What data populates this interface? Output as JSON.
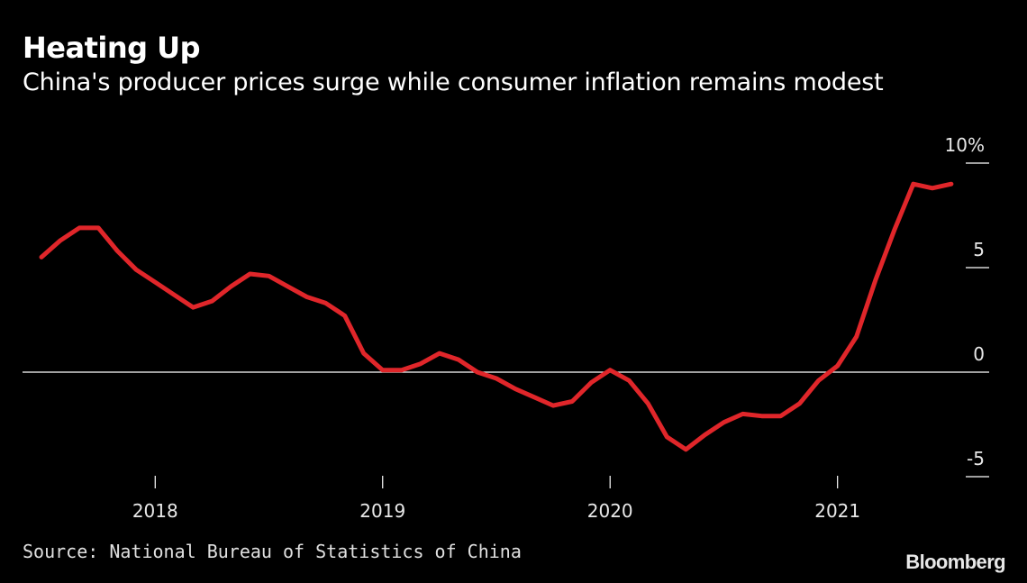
{
  "header": {
    "title": "Heating Up",
    "subtitle": "China's producer prices surge while consumer inflation remains modest"
  },
  "footer": {
    "source": "Source: National Bureau of Statistics of China",
    "brand": "Bloomberg"
  },
  "colors": {
    "background": "#000000",
    "series": "#e0262a",
    "axis": "#ffffff",
    "text": "#e8e8e8"
  },
  "chart_data": {
    "type": "line",
    "title": "Heating Up",
    "subtitle": "China's producer prices surge while consumer inflation remains modest",
    "xlabel": "",
    "ylabel": "",
    "ylim": [
      -5.5,
      10
    ],
    "grid": false,
    "legend": "none",
    "y_ticks": [
      {
        "value": 10,
        "label": "10%"
      },
      {
        "value": 5,
        "label": "5"
      },
      {
        "value": 0,
        "label": "0"
      },
      {
        "value": -5,
        "label": "-5"
      }
    ],
    "x_ticks": [
      {
        "value": "2018-01",
        "label": "2018"
      },
      {
        "value": "2019-01",
        "label": "2019"
      },
      {
        "value": "2020-01",
        "label": "2020"
      },
      {
        "value": "2021-01",
        "label": "2021"
      }
    ],
    "x_range": [
      "2017-06",
      "2021-09"
    ],
    "x": [
      "2017-07",
      "2017-08",
      "2017-09",
      "2017-10",
      "2017-11",
      "2017-12",
      "2018-01",
      "2018-02",
      "2018-03",
      "2018-04",
      "2018-05",
      "2018-06",
      "2018-07",
      "2018-08",
      "2018-09",
      "2018-10",
      "2018-11",
      "2018-12",
      "2019-01",
      "2019-02",
      "2019-03",
      "2019-04",
      "2019-05",
      "2019-06",
      "2019-07",
      "2019-08",
      "2019-09",
      "2019-10",
      "2019-11",
      "2019-12",
      "2020-01",
      "2020-02",
      "2020-03",
      "2020-04",
      "2020-05",
      "2020-06",
      "2020-07",
      "2020-08",
      "2020-09",
      "2020-10",
      "2020-11",
      "2020-12",
      "2021-01",
      "2021-02",
      "2021-03",
      "2021-04",
      "2021-05",
      "2021-06",
      "2021-07"
    ],
    "series": [
      {
        "values": [
          5.5,
          6.3,
          6.9,
          6.9,
          5.8,
          4.9,
          4.3,
          3.7,
          3.1,
          3.4,
          4.1,
          4.7,
          4.6,
          4.1,
          3.6,
          3.3,
          2.7,
          0.9,
          0.1,
          0.1,
          0.4,
          0.9,
          0.6,
          0.0,
          -0.3,
          -0.8,
          -1.2,
          -1.6,
          -1.4,
          -0.5,
          0.1,
          -0.4,
          -1.5,
          -3.1,
          -3.7,
          -3.0,
          -2.4,
          -2.0,
          -2.1,
          -2.1,
          -1.5,
          -0.4,
          0.3,
          1.7,
          4.4,
          6.8,
          9.0,
          8.8,
          9.0
        ]
      }
    ]
  }
}
